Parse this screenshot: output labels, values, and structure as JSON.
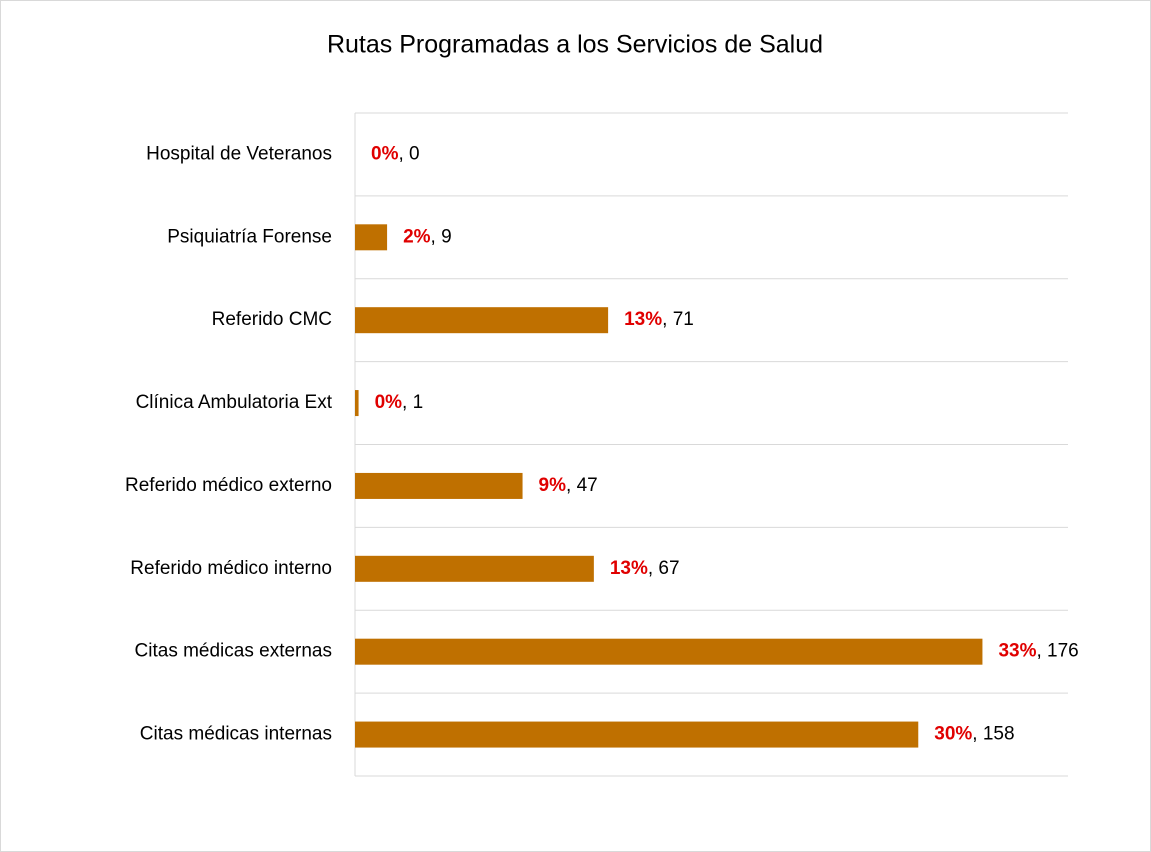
{
  "chart_data": {
    "type": "bar",
    "orientation": "horizontal",
    "title": "Rutas Programadas a los Servicios de Salud",
    "categories": [
      "Hospital de Veteranos",
      "Psiquiatría Forense",
      "Referido CMC",
      "Clínica Ambulatoria Ext",
      "Referido médico externo",
      "Referido médico interno",
      "Citas médicas externas",
      "Citas médicas internas"
    ],
    "values": [
      0,
      9,
      71,
      1,
      47,
      67,
      176,
      158
    ],
    "value_labels": [
      ", 0",
      ", 9",
      ", 71",
      ", 1",
      ", 47",
      ", 67",
      ", 176",
      ", 158"
    ],
    "percent_labels": [
      "0%",
      "2%",
      "13%",
      "0%",
      "9%",
      "13%",
      "33%",
      "30%"
    ],
    "color": "#bf7000",
    "xlim": [
      0,
      200
    ]
  }
}
